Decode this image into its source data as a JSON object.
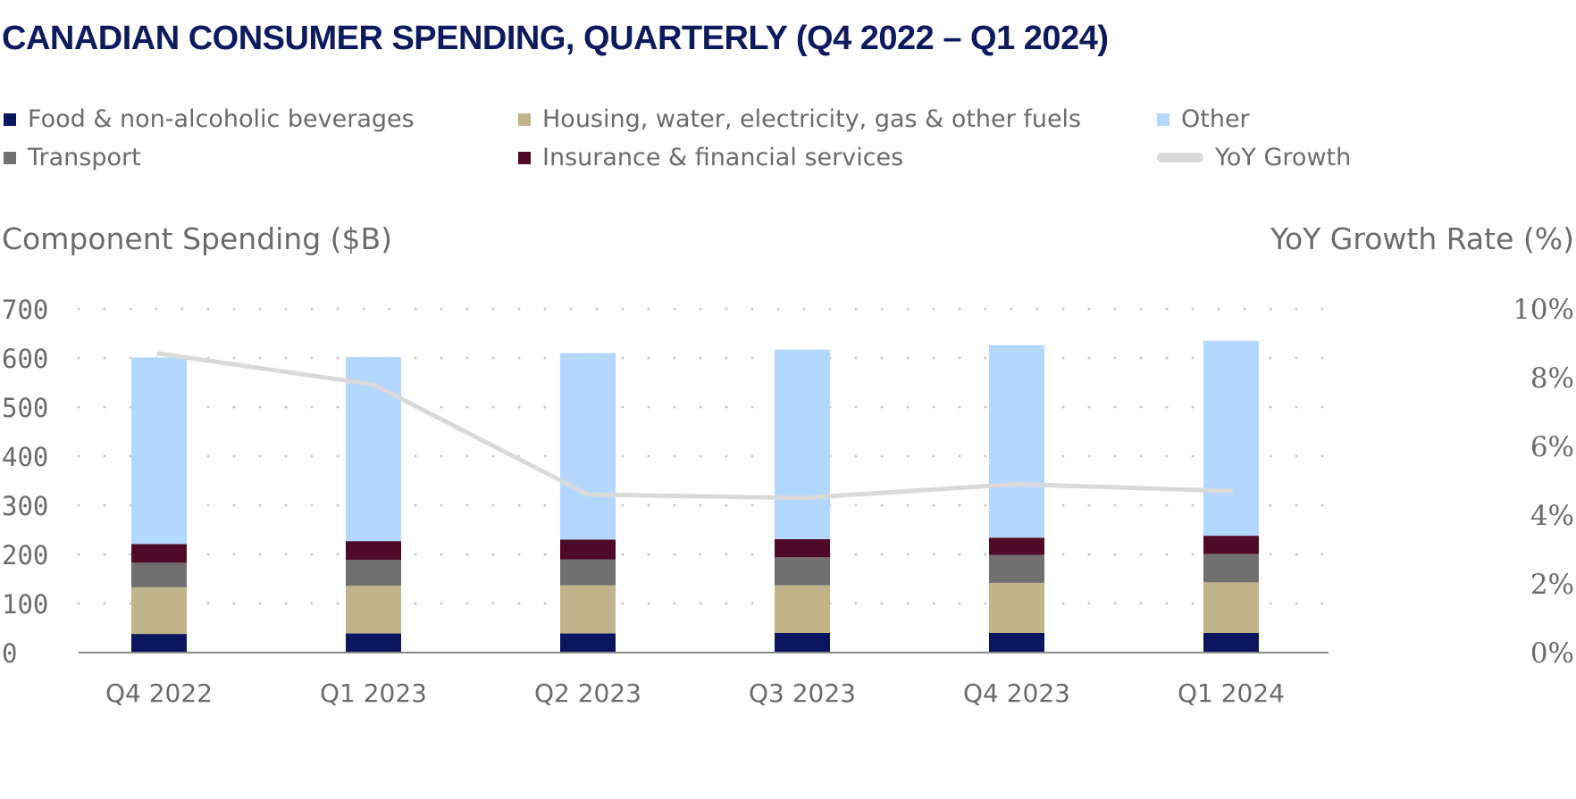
{
  "chart_data": {
    "type": "bar",
    "stacked": true,
    "title": "CANADIAN CONSUMER SPENDING, QUARTERLY (Q4 2022 – Q1 2024)",
    "categories": [
      "Q4 2022",
      "Q1 2023",
      "Q2 2023",
      "Q3 2023",
      "Q4 2023",
      "Q1 2024"
    ],
    "series": [
      {
        "key": "food",
        "name": "Food & non-alcoholic beverages",
        "color": "#0a1560",
        "values": [
          38,
          39,
          39,
          40,
          40,
          40
        ]
      },
      {
        "key": "housing",
        "name": "Housing, water, electricity, gas & other fuels",
        "color": "#c0b48a",
        "values": [
          95,
          97,
          98,
          97,
          102,
          103
        ]
      },
      {
        "key": "transport",
        "name": "Transport",
        "color": "#707070",
        "values": [
          50,
          53,
          53,
          57,
          57,
          58
        ]
      },
      {
        "key": "insurance",
        "name": "Insurance & financial services",
        "color": "#4e0a26",
        "values": [
          38,
          38,
          40,
          37,
          35,
          37
        ]
      },
      {
        "key": "other",
        "name": "Other",
        "color": "#b3d7ff",
        "values": [
          380,
          375,
          380,
          386,
          392,
          397
        ]
      }
    ],
    "line_series": {
      "name": "YoY Growth",
      "color": "#d9d9d9",
      "axis": "right",
      "values": [
        8.7,
        7.8,
        4.6,
        4.5,
        4.9,
        4.7
      ]
    },
    "ylabel": "Component Spending ($B)",
    "y2label": "YoY Growth Rate (%)",
    "ylim": [
      0,
      700
    ],
    "yticks": [
      "700",
      "600",
      "500",
      "400",
      "300",
      "200",
      "100",
      "0"
    ],
    "y2lim": [
      0,
      10
    ],
    "y2ticks": [
      "10%",
      "8%",
      "6%",
      "4%",
      "2%",
      "0%"
    ],
    "grid": "horizontal-dotted",
    "legend_position": "top"
  }
}
